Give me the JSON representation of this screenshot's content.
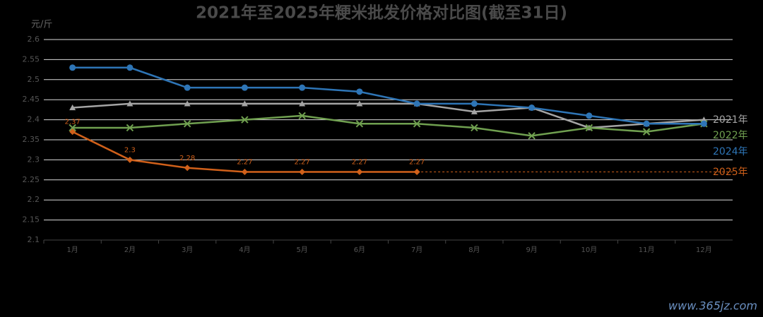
{
  "chart_data": {
    "type": "line",
    "title": "2021年至2025年粳米批发价格对比图(截至31日)",
    "y_label": "元/斤",
    "watermark": "www.365jz.com",
    "categories": [
      "1月",
      "2月",
      "3月",
      "4月",
      "5月",
      "6月",
      "7月",
      "8月",
      "9月",
      "10月",
      "11月",
      "12月"
    ],
    "ylim": [
      2.1,
      2.6
    ],
    "yticks": [
      2.1,
      2.15,
      2.2,
      2.25,
      2.3,
      2.35,
      2.4,
      2.45,
      2.5,
      2.55,
      2.6
    ],
    "grid": true,
    "series": [
      {
        "name": "2021年",
        "color": "#a5a5a5",
        "marker": "triangle",
        "values": [
          2.43,
          2.44,
          2.44,
          2.44,
          2.44,
          2.44,
          2.44,
          2.42,
          2.43,
          2.38,
          2.39,
          2.4
        ]
      },
      {
        "name": "2022年",
        "color": "#70a050",
        "marker": "x",
        "values": [
          2.38,
          2.38,
          2.39,
          2.4,
          2.41,
          2.39,
          2.39,
          2.38,
          2.36,
          2.38,
          2.37,
          2.39
        ]
      },
      {
        "name": "2024年",
        "color": "#2e75b6",
        "marker": "circle",
        "values": [
          2.53,
          2.53,
          2.48,
          2.48,
          2.48,
          2.47,
          2.44,
          2.44,
          2.43,
          2.41,
          2.39,
          2.39
        ]
      },
      {
        "name": "2025年",
        "color": "#d0601a",
        "marker": "diamond",
        "data_labels": true,
        "trend_extend": true,
        "values": [
          2.37,
          2.3,
          2.28,
          2.27,
          2.27,
          2.27,
          2.27,
          null,
          null,
          null,
          null,
          null
        ]
      }
    ]
  }
}
